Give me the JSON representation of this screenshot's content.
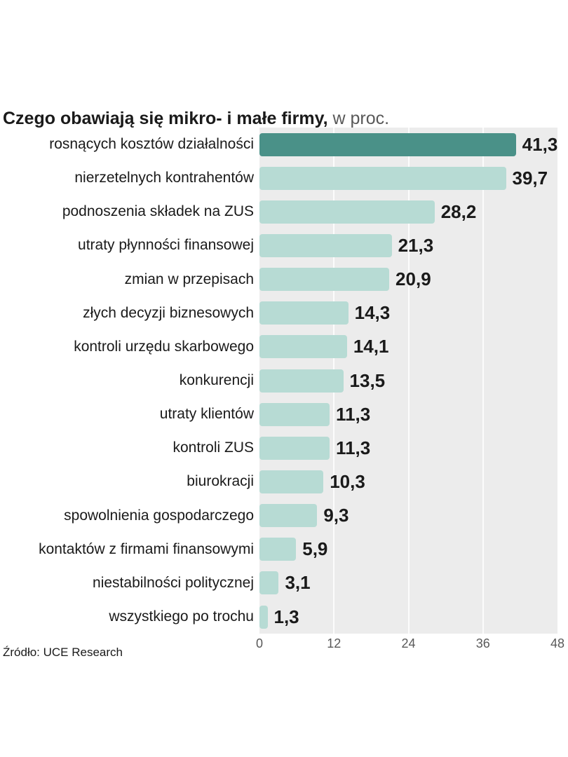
{
  "title": {
    "bold": "Czego obawiają się mikro- i małe firmy,",
    "light": " w proc."
  },
  "source": "Źródło: UCE Research",
  "chart_data": {
    "type": "bar",
    "orientation": "horizontal",
    "title": "Czego obawiają się mikro- i małe firmy, w proc.",
    "categories": [
      "rosnących kosztów działalności",
      "nierzetelnych kontrahentów",
      "podnoszenia składek na ZUS",
      "utraty płynności finansowej",
      "zmian w przepisach",
      "złych decyzji biznesowych",
      "kontroli urzędu skarbowego",
      "konkurencji",
      "utraty klientów",
      "kontroli ZUS",
      "biurokracji",
      "spowolnienia gospodarczego",
      "kontaktów z firmami finansowymi",
      "niestabilności politycznej",
      "wszystkiego po trochu"
    ],
    "values": [
      41.3,
      39.7,
      28.2,
      21.3,
      20.9,
      14.3,
      14.1,
      13.5,
      11.3,
      11.3,
      10.3,
      9.3,
      5.9,
      3.1,
      1.3
    ],
    "display_values": [
      "41,3",
      "39,7",
      "28,2",
      "21,3",
      "20,9",
      "14,3",
      "14,1",
      "13,5",
      "11,3",
      "11,3",
      "10,3",
      "9,3",
      "5,9",
      "3,1",
      "1,3"
    ],
    "xlim": [
      0,
      48
    ],
    "xticks": [
      0,
      12,
      24,
      36,
      48
    ],
    "grid": true,
    "legend": "none",
    "colors": {
      "highlight_bar": "#4a9188",
      "default_bar": "#b7dbd4",
      "plot_background": "#ececec",
      "value_text": "#1a1a1a",
      "axis_text": "#595959"
    }
  }
}
